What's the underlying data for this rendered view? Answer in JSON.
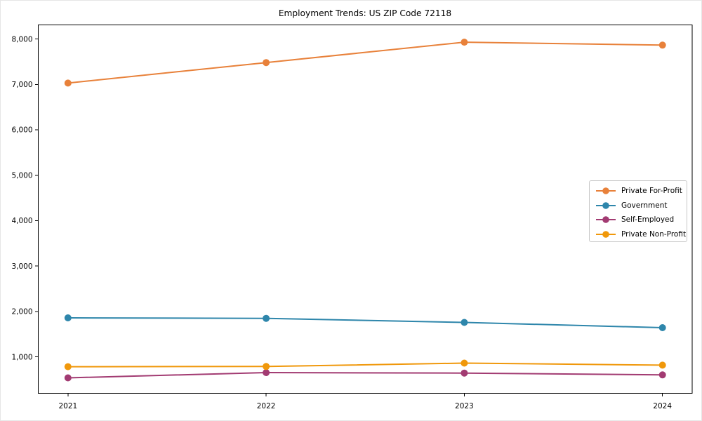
{
  "chart_data": {
    "type": "line",
    "title": "Employment Trends: US ZIP Code 72118",
    "x": [
      2021,
      2022,
      2023,
      2024
    ],
    "x_tick_labels": [
      "2021",
      "2022",
      "2023",
      "2024"
    ],
    "series": [
      {
        "name": "Private For-Profit",
        "color": "#e8813a",
        "values": [
          7030,
          7480,
          7930,
          7865
        ]
      },
      {
        "name": "Government",
        "color": "#2e86ab",
        "values": [
          1860,
          1850,
          1760,
          1645
        ]
      },
      {
        "name": "Self-Employed",
        "color": "#a23b72",
        "values": [
          540,
          655,
          645,
          605
        ]
      },
      {
        "name": "Private Non-Profit",
        "color": "#f0980b",
        "values": [
          785,
          790,
          865,
          820
        ]
      }
    ],
    "xlabel": "",
    "ylabel": "",
    "y_ticks": [
      1000,
      2000,
      3000,
      4000,
      5000,
      6000,
      7000,
      8000
    ],
    "y_tick_labels": [
      "1,000",
      "2,000",
      "3,000",
      "4,000",
      "5,000",
      "6,000",
      "7,000",
      "8,000"
    ],
    "xlim": [
      2020.85,
      2024.15
    ],
    "ylim": [
      200,
      8310
    ],
    "grid": false,
    "legend_position": "center-right",
    "marker": "circle",
    "axis_color": "#000000",
    "text_color": "#000000",
    "background_color": "#ffffff"
  }
}
